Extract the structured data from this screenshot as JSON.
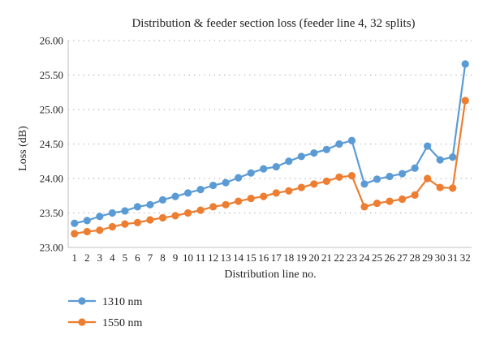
{
  "chart_data": {
    "type": "line",
    "title": "Distribution & feeder section loss (feeder line 4, 32 splits)",
    "xlabel": "Distribution line no.",
    "ylabel": "Loss (dB)",
    "ylim": [
      23.0,
      26.0
    ],
    "yticks": [
      "23.00",
      "23.50",
      "24.00",
      "24.50",
      "25.00",
      "25.50",
      "26.00"
    ],
    "categories": [
      "1",
      "2",
      "3",
      "4",
      "5",
      "6",
      "7",
      "8",
      "9",
      "10",
      "11",
      "12",
      "13",
      "14",
      "15",
      "16",
      "17",
      "18",
      "19",
      "20",
      "21",
      "22",
      "23",
      "24",
      "25",
      "26",
      "27",
      "28",
      "29",
      "30",
      "31",
      "32"
    ],
    "grid": "horizontal-dotted",
    "legend_position": "bottom-left",
    "series": [
      {
        "name": "1310 nm",
        "color": "#5b9bd5",
        "values": [
          23.35,
          23.39,
          23.45,
          23.5,
          23.53,
          23.59,
          23.62,
          23.69,
          23.74,
          23.79,
          23.84,
          23.9,
          23.94,
          24.01,
          24.08,
          24.14,
          24.17,
          24.25,
          24.32,
          24.37,
          24.42,
          24.5,
          24.55,
          23.92,
          23.99,
          24.03,
          24.07,
          24.15,
          24.47,
          24.27,
          24.31,
          25.66
        ]
      },
      {
        "name": "1550 nm",
        "color": "#ed7d31",
        "values": [
          23.2,
          23.23,
          23.25,
          23.3,
          23.34,
          23.36,
          23.4,
          23.43,
          23.46,
          23.5,
          23.54,
          23.59,
          23.62,
          23.67,
          23.71,
          23.74,
          23.79,
          23.82,
          23.87,
          23.92,
          23.96,
          24.02,
          24.04,
          23.59,
          23.64,
          23.67,
          23.7,
          23.76,
          24.0,
          23.87,
          23.86,
          25.13
        ]
      }
    ]
  }
}
